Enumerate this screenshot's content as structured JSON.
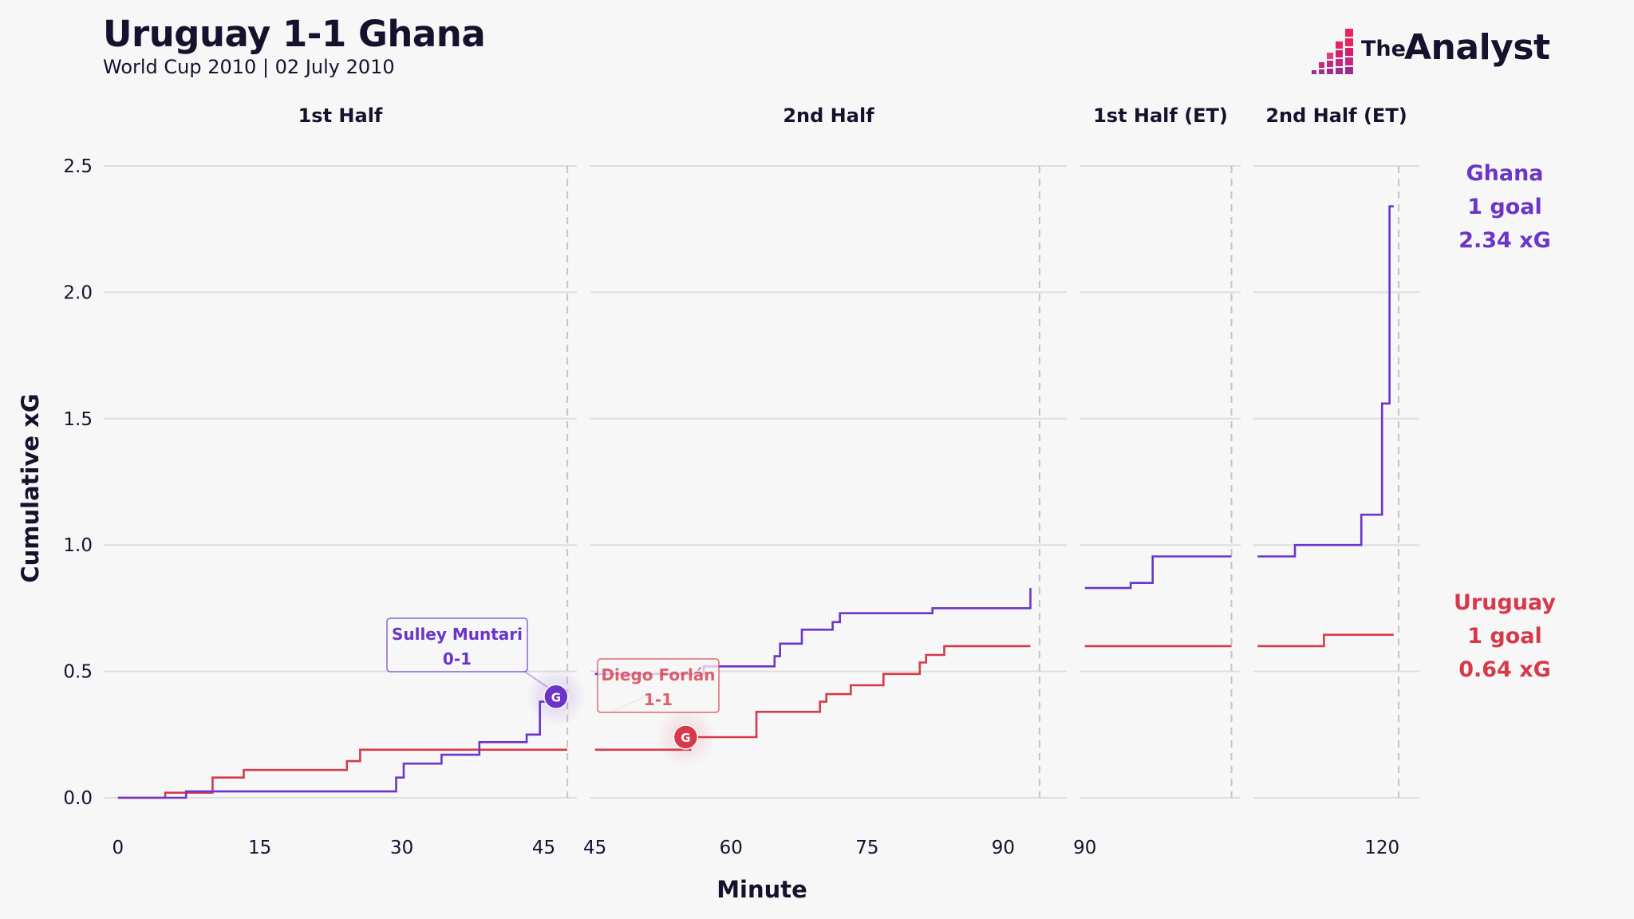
{
  "header": {
    "title": "Uruguay 1-1 Ghana",
    "subtitle": "World Cup 2010 | 02 July 2010"
  },
  "logo": {
    "the": "The",
    "analyst": "Analyst"
  },
  "colors": {
    "ghana": "#6a35c8",
    "uruguay": "#d63a4a",
    "grid": "#dedede",
    "vline": "#c4c4c4"
  },
  "chart_data": {
    "type": "line",
    "step": true,
    "title": "Uruguay 1-1 Ghana",
    "xlabel": "Minute",
    "ylabel": "Cumulative xG",
    "ylim": [
      0,
      2.5
    ],
    "yticks": [
      0.0,
      0.5,
      1.0,
      1.5,
      2.0,
      2.5
    ],
    "ytick_labels": [
      "0.0",
      "0.5",
      "1.0",
      "1.5",
      "2.0",
      "2.5"
    ],
    "panels": [
      {
        "label": "1st Half",
        "xlim": [
          -1.5,
          48.5
        ],
        "end_marker": 47.5,
        "xticks": [
          0,
          15,
          30,
          45
        ]
      },
      {
        "label": "2nd Half",
        "xlim": [
          44.5,
          97
        ],
        "end_marker": 94,
        "xticks": [
          45,
          60,
          75,
          90
        ]
      },
      {
        "label": "1st Half (ET)",
        "xlim": [
          89.5,
          107
        ],
        "end_marker": 106,
        "xticks": [
          90
        ]
      },
      {
        "label": "2nd Half (ET)",
        "xlim": [
          104.5,
          124.5
        ],
        "end_marker": 122,
        "xticks": [
          120
        ]
      }
    ],
    "series": [
      {
        "name": "Ghana",
        "panels": [
          [
            [
              0,
              0
            ],
            [
              7.2,
              0
            ],
            [
              7.2,
              0.025
            ],
            [
              29.4,
              0.025
            ],
            [
              29.4,
              0.08
            ],
            [
              30.2,
              0.08
            ],
            [
              30.2,
              0.135
            ],
            [
              34.2,
              0.135
            ],
            [
              34.2,
              0.17
            ],
            [
              38.2,
              0.17
            ],
            [
              38.2,
              0.22
            ],
            [
              43.2,
              0.22
            ],
            [
              43.2,
              0.25
            ],
            [
              44.6,
              0.25
            ],
            [
              44.6,
              0.38
            ],
            [
              46.3,
              0.38
            ]
          ],
          [
            [
              45,
              0.49
            ],
            [
              57,
              0.49
            ],
            [
              57,
              0.52
            ],
            [
              64.8,
              0.52
            ],
            [
              64.8,
              0.56
            ],
            [
              65.4,
              0.56
            ],
            [
              65.4,
              0.61
            ],
            [
              67.8,
              0.61
            ],
            [
              67.8,
              0.665
            ],
            [
              71.2,
              0.665
            ],
            [
              71.2,
              0.695
            ],
            [
              72,
              0.695
            ],
            [
              72,
              0.73
            ],
            [
              82.2,
              0.73
            ],
            [
              82.2,
              0.75
            ],
            [
              93,
              0.75
            ],
            [
              93,
              0.83
            ]
          ],
          [
            [
              90,
              0.83
            ],
            [
              95,
              0.83
            ],
            [
              95,
              0.85
            ],
            [
              97.4,
              0.85
            ],
            [
              97.4,
              0.955
            ],
            [
              106,
              0.955
            ]
          ],
          [
            [
              105,
              0.955
            ],
            [
              109.5,
              0.955
            ],
            [
              109.5,
              1.0
            ],
            [
              117.5,
              1.0
            ],
            [
              117.5,
              1.12
            ],
            [
              120,
              1.12
            ],
            [
              120,
              1.56
            ],
            [
              120.9,
              1.56
            ],
            [
              120.9,
              2.34
            ],
            [
              121.4,
              2.34
            ]
          ]
        ],
        "goals": 1,
        "xg": 2.34,
        "label_lines": [
          "Ghana",
          "1 goal",
          "2.34 xG"
        ]
      },
      {
        "name": "Uruguay",
        "panels": [
          [
            [
              0,
              0
            ],
            [
              5,
              0
            ],
            [
              5,
              0.02
            ],
            [
              10,
              0.02
            ],
            [
              10,
              0.08
            ],
            [
              13.3,
              0.08
            ],
            [
              13.3,
              0.11
            ],
            [
              24.2,
              0.11
            ],
            [
              24.2,
              0.145
            ],
            [
              25.6,
              0.145
            ],
            [
              25.6,
              0.19
            ],
            [
              47.5,
              0.19
            ]
          ],
          [
            [
              45,
              0.19
            ],
            [
              55.5,
              0.19
            ],
            [
              55.5,
              0.24
            ],
            [
              62.8,
              0.24
            ],
            [
              62.8,
              0.34
            ],
            [
              69.8,
              0.34
            ],
            [
              69.8,
              0.38
            ],
            [
              70.5,
              0.38
            ],
            [
              70.5,
              0.41
            ],
            [
              73.2,
              0.41
            ],
            [
              73.2,
              0.445
            ],
            [
              76.8,
              0.445
            ],
            [
              76.8,
              0.49
            ],
            [
              80.8,
              0.49
            ],
            [
              80.8,
              0.535
            ],
            [
              81.5,
              0.535
            ],
            [
              81.5,
              0.565
            ],
            [
              83.5,
              0.565
            ],
            [
              83.5,
              0.6
            ],
            [
              93,
              0.6
            ]
          ],
          [
            [
              90,
              0.6
            ],
            [
              106,
              0.6
            ]
          ],
          [
            [
              105,
              0.6
            ],
            [
              113,
              0.6
            ],
            [
              113,
              0.645
            ],
            [
              121.4,
              0.645
            ]
          ]
        ],
        "goals": 1,
        "xg": 0.64,
        "label_lines": [
          "Uruguay",
          "1 goal",
          "0.64 xG"
        ]
      }
    ],
    "annotations": [
      {
        "team": "Ghana",
        "player": "Sulley Muntari",
        "score": "0-1",
        "minute": 46.3,
        "xg": 0.4,
        "marker": "G"
      },
      {
        "team": "Uruguay",
        "player": "Diego Forlán",
        "score": "1-1",
        "minute": 55,
        "xg": 0.24,
        "marker": "G"
      }
    ]
  }
}
